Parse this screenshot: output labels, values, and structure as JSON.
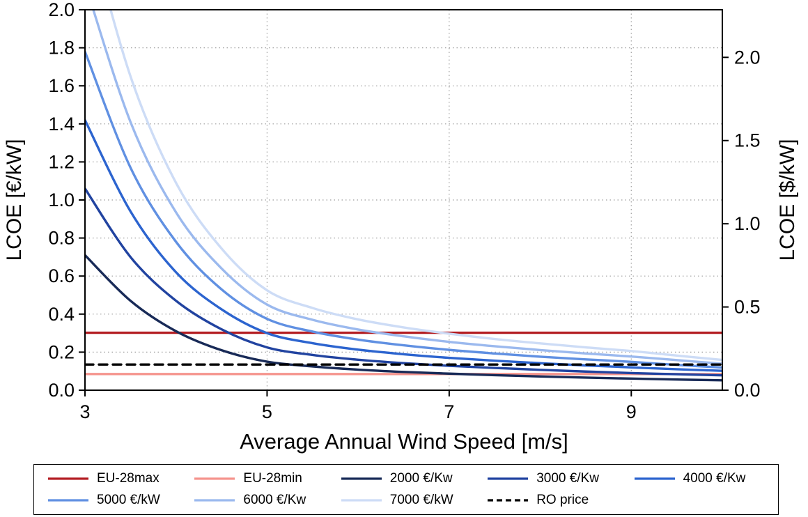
{
  "page": {
    "background": "#ffffff"
  },
  "chart_data": {
    "type": "line",
    "title": "",
    "xlabel": "Average Annual Wind Speed [m/s]",
    "ylabel_left": "LCOE [€/kW]",
    "ylabel_right": "LCOE [$/kW]",
    "x_range": [
      3,
      10
    ],
    "y_range_left": [
      0,
      2.0
    ],
    "y_range_right": [
      0,
      2.286
    ],
    "usd_per_eur": 1.143,
    "grid": {
      "on": true,
      "color": "#9e9e9e",
      "x_lines": [
        5,
        7,
        9
      ],
      "y_lines": [
        0.2,
        0.4,
        0.6,
        0.8,
        1.0,
        1.2,
        1.4,
        1.6,
        1.8
      ]
    },
    "x_ticks": {
      "values": [
        3,
        5,
        7,
        9
      ],
      "labels": [
        "3",
        "5",
        "7",
        "9"
      ]
    },
    "y_ticks_left": {
      "values": [
        0,
        0.2,
        0.4,
        0.6,
        0.8,
        1.0,
        1.2,
        1.4,
        1.6,
        1.8,
        2.0
      ],
      "labels": [
        "0.0",
        "0.2",
        "0.4",
        "0.6",
        "0.8",
        "1.0",
        "1.2",
        "1.4",
        "1.6",
        "1.8",
        "2.0"
      ]
    },
    "y_ticks_right": {
      "values": [
        0,
        0.5,
        1.0,
        1.5,
        2.0
      ],
      "labels": [
        "0.0",
        "0.5",
        "1.0",
        "1.5",
        "2.0"
      ]
    },
    "legend_position": "bottom",
    "x": [
      3,
      3.5,
      4,
      4.5,
      5,
      5.5,
      6,
      6.5,
      7,
      7.5,
      8,
      8.5,
      9,
      9.5,
      10
    ],
    "series": [
      {
        "name": "EU-28max",
        "color": "#b41f24",
        "type": "hline",
        "value": 0.302,
        "dash": false
      },
      {
        "name": "EU-28min",
        "color": "#f5948d",
        "type": "hline",
        "value": 0.085,
        "dash": false
      },
      {
        "name": "2000 €/Kw",
        "color": "#182a57",
        "type": "curve",
        "dash": false,
        "values": [
          0.71,
          0.47,
          0.31,
          0.21,
          0.15,
          0.125,
          0.108,
          0.096,
          0.087,
          0.079,
          0.072,
          0.066,
          0.061,
          0.056,
          0.052
        ]
      },
      {
        "name": "3000 €/Kw",
        "color": "#2143a0",
        "type": "curve",
        "dash": false,
        "values": [
          1.06,
          0.7,
          0.47,
          0.32,
          0.225,
          0.185,
          0.16,
          0.142,
          0.128,
          0.117,
          0.107,
          0.098,
          0.09,
          0.084,
          0.078
        ]
      },
      {
        "name": "4000 €/Kw",
        "color": "#2c64cf",
        "type": "curve",
        "dash": false,
        "values": [
          1.42,
          0.94,
          0.62,
          0.425,
          0.3,
          0.247,
          0.213,
          0.189,
          0.17,
          0.155,
          0.142,
          0.13,
          0.12,
          0.11,
          0.102
        ]
      },
      {
        "name": "5000 €/kW",
        "color": "#6090e2",
        "type": "curve",
        "dash": false,
        "values": [
          1.78,
          1.17,
          0.78,
          0.53,
          0.375,
          0.308,
          0.266,
          0.236,
          0.212,
          0.193,
          0.176,
          0.162,
          0.149,
          0.133,
          0.119
        ]
      },
      {
        "name": "6000 €/Kw",
        "color": "#9bb9ee",
        "type": "curve",
        "dash": false,
        "values": [
          2.14,
          1.41,
          0.935,
          0.64,
          0.45,
          0.37,
          0.319,
          0.283,
          0.254,
          0.231,
          0.211,
          0.193,
          0.177,
          0.158,
          0.139
        ]
      },
      {
        "name": "7000 €/kW",
        "color": "#cddcf6",
        "type": "curve",
        "dash": false,
        "values": [
          2.5,
          1.65,
          1.09,
          0.745,
          0.525,
          0.432,
          0.372,
          0.33,
          0.297,
          0.269,
          0.246,
          0.225,
          0.206,
          0.182,
          0.159
        ]
      },
      {
        "name": "RO price",
        "color": "#000000",
        "type": "hline",
        "value": 0.135,
        "dash": true
      }
    ]
  }
}
